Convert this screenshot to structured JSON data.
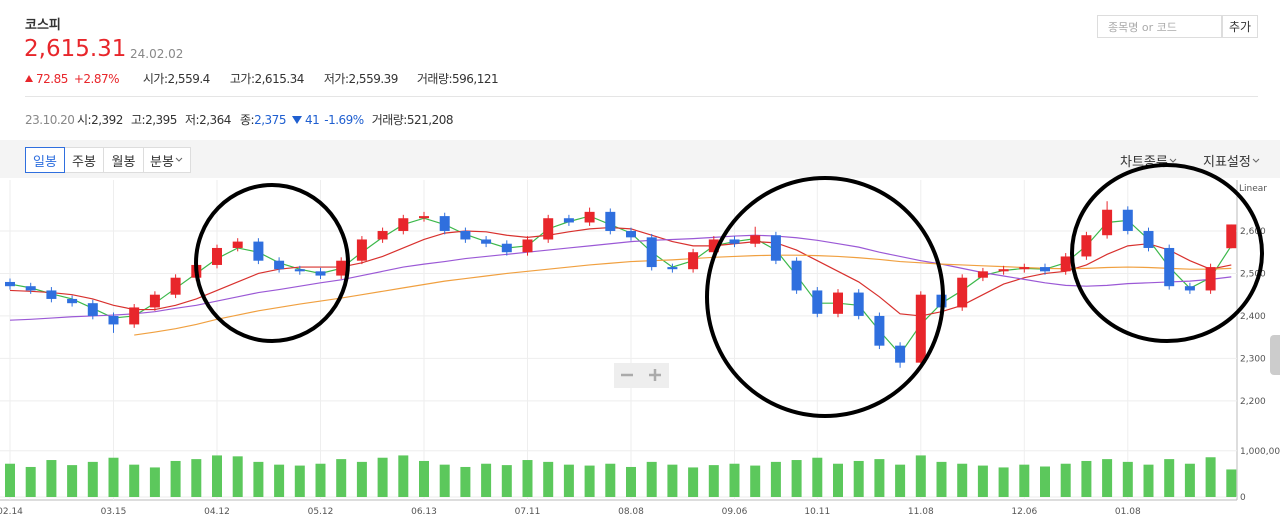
{
  "header": {
    "name": "코스피",
    "price": "2,615.31",
    "date": "24.02.02",
    "change": "72.85",
    "change_pct": "+2.87%",
    "fields": [
      "시가:2,559.4",
      "고가:2,615.34",
      "저가:2,559.39",
      "거래량:596,121"
    ]
  },
  "search": {
    "placeholder": "종목명 or 코드",
    "button": "추가"
  },
  "cursor_info": {
    "date": "23.10.20",
    "fields": [
      "시:2,392",
      "고:2,395",
      "저:2,364"
    ],
    "close_label": "종:",
    "close": "2,375",
    "change": "41",
    "change_pct": "-1.69%",
    "volume": "거래량:521,208"
  },
  "toolbar": {
    "tabs": [
      "일봉",
      "주봉",
      "월봉",
      "분봉"
    ],
    "chart_type": "차트종류",
    "indicator": "지표설정"
  },
  "chart_data": {
    "type": "candlestick",
    "scale_label": "Linear",
    "categories": [
      "02.14",
      null,
      null,
      null,
      null,
      "03.15",
      null,
      null,
      null,
      null,
      "04.12",
      null,
      null,
      null,
      null,
      "05.12",
      null,
      null,
      null,
      null,
      "06.13",
      null,
      null,
      null,
      null,
      "07.11",
      null,
      null,
      null,
      null,
      "08.08",
      null,
      null,
      null,
      null,
      "09.06",
      null,
      null,
      null,
      "10.11",
      null,
      null,
      null,
      null,
      "11.08",
      null,
      null,
      null,
      null,
      "12.06",
      null,
      null,
      null,
      null,
      "01.08",
      null,
      null,
      null,
      null,
      null
    ],
    "candles": [
      [
        2480,
        2488,
        2462,
        2470
      ],
      [
        2470,
        2478,
        2452,
        2460
      ],
      [
        2460,
        2468,
        2432,
        2440
      ],
      [
        2440,
        2448,
        2422,
        2430
      ],
      [
        2430,
        2438,
        2392,
        2400
      ],
      [
        2400,
        2408,
        2360,
        2380
      ],
      [
        2380,
        2428,
        2372,
        2420
      ],
      [
        2420,
        2458,
        2412,
        2450
      ],
      [
        2450,
        2498,
        2442,
        2490
      ],
      [
        2490,
        2528,
        2482,
        2520
      ],
      [
        2520,
        2568,
        2512,
        2560
      ],
      [
        2560,
        2583,
        2552,
        2575
      ],
      [
        2575,
        2583,
        2522,
        2530
      ],
      [
        2530,
        2538,
        2502,
        2510
      ],
      [
        2510,
        2518,
        2497,
        2505
      ],
      [
        2505,
        2513,
        2487,
        2495
      ],
      [
        2495,
        2538,
        2487,
        2530
      ],
      [
        2530,
        2588,
        2522,
        2580
      ],
      [
        2580,
        2608,
        2572,
        2600
      ],
      [
        2600,
        2638,
        2592,
        2630
      ],
      [
        2630,
        2645,
        2622,
        2635
      ],
      [
        2635,
        2643,
        2592,
        2600
      ],
      [
        2600,
        2608,
        2572,
        2580
      ],
      [
        2580,
        2588,
        2562,
        2570
      ],
      [
        2570,
        2578,
        2542,
        2550
      ],
      [
        2550,
        2588,
        2542,
        2580
      ],
      [
        2580,
        2638,
        2572,
        2630
      ],
      [
        2630,
        2638,
        2612,
        2620
      ],
      [
        2620,
        2655,
        2612,
        2645
      ],
      [
        2645,
        2653,
        2592,
        2600
      ],
      [
        2600,
        2608,
        2577,
        2585
      ],
      [
        2585,
        2593,
        2507,
        2515
      ],
      [
        2515,
        2523,
        2502,
        2510
      ],
      [
        2510,
        2558,
        2502,
        2550
      ],
      [
        2550,
        2588,
        2542,
        2580
      ],
      [
        2580,
        2588,
        2562,
        2570
      ],
      [
        2570,
        2610,
        2562,
        2590
      ],
      [
        2590,
        2598,
        2522,
        2530
      ],
      [
        2530,
        2538,
        2452,
        2460
      ],
      [
        2460,
        2468,
        2397,
        2405
      ],
      [
        2405,
        2463,
        2397,
        2455
      ],
      [
        2455,
        2463,
        2392,
        2400
      ],
      [
        2400,
        2408,
        2322,
        2330
      ],
      [
        2330,
        2338,
        2278,
        2290
      ],
      [
        2290,
        2458,
        2282,
        2450
      ],
      [
        2450,
        2458,
        2412,
        2420
      ],
      [
        2420,
        2498,
        2412,
        2490
      ],
      [
        2490,
        2513,
        2482,
        2505
      ],
      [
        2505,
        2518,
        2497,
        2510
      ],
      [
        2510,
        2523,
        2502,
        2515
      ],
      [
        2515,
        2523,
        2497,
        2505
      ],
      [
        2505,
        2548,
        2497,
        2540
      ],
      [
        2540,
        2598,
        2532,
        2590
      ],
      [
        2590,
        2670,
        2582,
        2650
      ],
      [
        2650,
        2658,
        2592,
        2600
      ],
      [
        2600,
        2608,
        2552,
        2560
      ],
      [
        2560,
        2568,
        2462,
        2470
      ],
      [
        2470,
        2478,
        2452,
        2460
      ],
      [
        2460,
        2523,
        2452,
        2515
      ],
      [
        2559.4,
        2615.34,
        2559.39,
        2615.31
      ]
    ],
    "up_color": "#e8262b",
    "down_color": "#2f6fde",
    "moving_averages": [
      {
        "color": "#3cb84a",
        "values": [
          2475,
          2466,
          2452,
          2440,
          2418,
          2395,
          2400,
          2430,
          2465,
          2500,
          2535,
          2560,
          2550,
          2525,
          2510,
          2500,
          2512,
          2550,
          2585,
          2615,
          2630,
          2615,
          2592,
          2575,
          2560,
          2565,
          2605,
          2622,
          2635,
          2615,
          2595,
          2550,
          2515,
          2530,
          2565,
          2575,
          2582,
          2555,
          2495,
          2430,
          2430,
          2425,
          2365,
          2310,
          2380,
          2430,
          2460,
          2495,
          2507,
          2512,
          2510,
          2525,
          2565,
          2620,
          2625,
          2580,
          2515,
          2465,
          2490,
          2565
        ]
      },
      {
        "color": "#d8312e",
        "values": [
          2460,
          2458,
          2455,
          2450,
          2440,
          2425,
          2415,
          2415,
          2425,
          2440,
          2460,
          2480,
          2500,
          2510,
          2515,
          2515,
          2515,
          2525,
          2540,
          2560,
          2580,
          2595,
          2600,
          2598,
          2590,
          2585,
          2590,
          2598,
          2605,
          2608,
          2605,
          2590,
          2575,
          2565,
          2565,
          2570,
          2575,
          2572,
          2555,
          2530,
          2505,
          2480,
          2445,
          2405,
          2400,
          2410,
          2425,
          2450,
          2475,
          2490,
          2500,
          2505,
          2520,
          2545,
          2565,
          2570,
          2555,
          2530,
          2510,
          2520
        ]
      },
      {
        "color": "#9b59d6",
        "values": [
          2390,
          2392,
          2395,
          2398,
          2400,
          2402,
          2405,
          2410,
          2418,
          2425,
          2435,
          2445,
          2455,
          2462,
          2470,
          2478,
          2485,
          2495,
          2505,
          2515,
          2522,
          2528,
          2535,
          2540,
          2545,
          2550,
          2555,
          2560,
          2565,
          2570,
          2575,
          2578,
          2580,
          2582,
          2585,
          2588,
          2590,
          2588,
          2584,
          2578,
          2570,
          2562,
          2550,
          2540,
          2530,
          2522,
          2512,
          2502,
          2494,
          2486,
          2478,
          2472,
          2470,
          2472,
          2476,
          2478,
          2480,
          2482,
          2486,
          2492
        ]
      },
      {
        "color": "#f0a040",
        "values": [
          null,
          null,
          null,
          null,
          null,
          null,
          2355,
          2362,
          2370,
          2380,
          2392,
          2402,
          2412,
          2420,
          2428,
          2435,
          2442,
          2450,
          2458,
          2466,
          2474,
          2482,
          2488,
          2494,
          2500,
          2505,
          2510,
          2515,
          2520,
          2524,
          2528,
          2530,
          2532,
          2535,
          2538,
          2540,
          2542,
          2543,
          2543,
          2542,
          2540,
          2537,
          2533,
          2528,
          2525,
          2522,
          2520,
          2518,
          2516,
          2514,
          2512,
          2511,
          2512,
          2514,
          2515,
          2514,
          2512,
          2510,
          2510,
          2512
        ]
      }
    ],
    "ylim": [
      2155,
      2720
    ],
    "yticks": [
      {
        "value": 2600,
        "label": "2,600"
      },
      {
        "value": 2500,
        "label": "2,500"
      },
      {
        "value": 2400,
        "label": "2,400"
      },
      {
        "value": 2300,
        "label": "2,300"
      },
      {
        "value": 2200,
        "label": "2,200"
      }
    ],
    "volume": [
      720000,
      650000,
      800000,
      690000,
      760000,
      850000,
      700000,
      640000,
      780000,
      820000,
      900000,
      880000,
      760000,
      700000,
      680000,
      720000,
      820000,
      760000,
      850000,
      900000,
      780000,
      700000,
      650000,
      720000,
      690000,
      800000,
      760000,
      700000,
      680000,
      720000,
      650000,
      760000,
      700000,
      640000,
      690000,
      720000,
      680000,
      760000,
      800000,
      850000,
      720000,
      780000,
      820000,
      700000,
      900000,
      760000,
      720000,
      680000,
      640000,
      700000,
      660000,
      720000,
      780000,
      820000,
      760000,
      700000,
      820000,
      720000,
      860000,
      596121
    ],
    "volume_color": "#5cc85c",
    "volume_ylim": [
      0,
      1450000
    ],
    "volume_yticks": [
      {
        "value": 1000000,
        "label": "1,000,000"
      },
      0
    ],
    "grid": true
  }
}
